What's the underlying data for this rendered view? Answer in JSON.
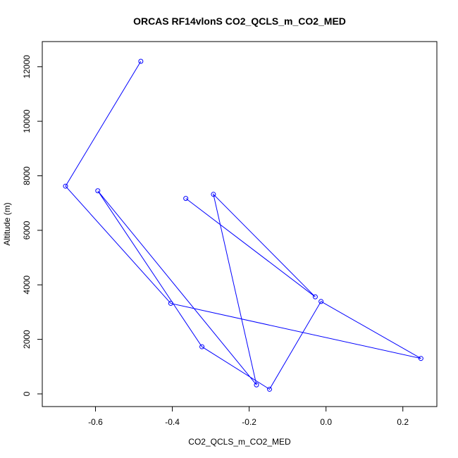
{
  "chart_data": {
    "type": "line",
    "title": "ORCAS RF14vlonS CO2_QCLS_m_CO2_MED",
    "xlabel": "CO2_QCLS_m_CO2_MED",
    "ylabel": "Altitude (m)",
    "xlim": [
      -0.7,
      0.25
    ],
    "ylim": [
      0,
      12200
    ],
    "x_ticks": [
      -0.6,
      -0.4,
      -0.2,
      0.0,
      0.2
    ],
    "x_tick_labels": [
      "-0.6",
      "-0.4",
      "-0.2",
      "0.0",
      "0.2"
    ],
    "y_ticks": [
      0,
      2000,
      4000,
      6000,
      8000,
      10000,
      12000
    ],
    "y_tick_labels": [
      "0",
      "2000",
      "4000",
      "6000",
      "8000",
      "10000",
      "12000"
    ],
    "grid": false,
    "series": [
      {
        "color": "#0000ff",
        "marker": "open-circle",
        "x": [
          -0.482,
          -0.678,
          -0.404,
          0.247,
          -0.013,
          -0.147,
          -0.323,
          -0.594,
          -0.181,
          -0.293,
          -0.028,
          -0.365
        ],
        "y": [
          12200,
          7620,
          3320,
          1300,
          3390,
          170,
          1730,
          7450,
          330,
          7320,
          3560,
          7170
        ]
      }
    ]
  }
}
